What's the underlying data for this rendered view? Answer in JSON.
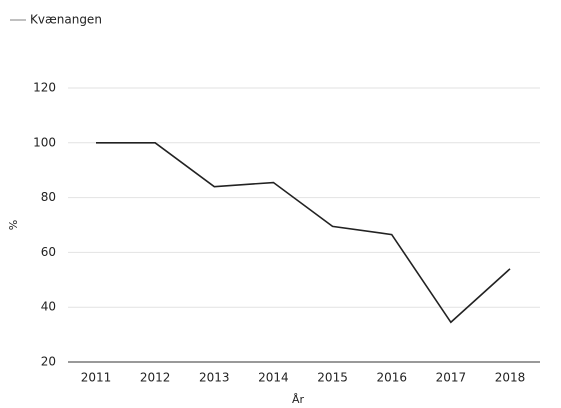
{
  "chart_data": {
    "type": "line",
    "categories": [
      "2011",
      "2012",
      "2013",
      "2014",
      "2015",
      "2016",
      "2017",
      "2018"
    ],
    "series": [
      {
        "name": "Kvænangen",
        "color": "#222222",
        "values": [
          100,
          100,
          84,
          85.5,
          69.5,
          66.5,
          34.5,
          54
        ]
      }
    ],
    "ylim": [
      20,
      120
    ],
    "yticks": [
      20,
      40,
      60,
      80,
      100,
      120
    ],
    "xlabel": "År",
    "ylabel": "%",
    "grid": true,
    "legend": "top-left"
  }
}
